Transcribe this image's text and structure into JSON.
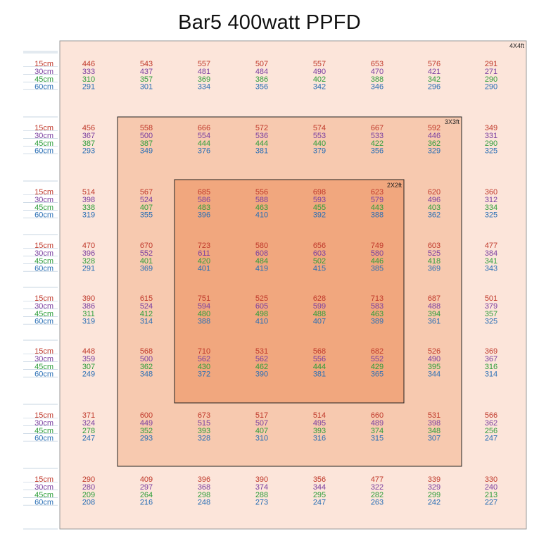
{
  "title": "Bar5 400watt PPFD",
  "colors": {
    "zone_outer": "#fce5da",
    "zone_mid": "#f7c9af",
    "zone_inner": "#f1a77e",
    "row_colors": [
      "#c0392b",
      "#7b3fa0",
      "#2e9e3a",
      "#2a6fb5"
    ]
  },
  "chart_data": {
    "type": "heatmap",
    "title": "Bar5 400watt PPFD",
    "heights": [
      "15cm",
      "30cm",
      "45cm",
      "60cm"
    ],
    "zones": [
      {
        "label": "4X4ft",
        "cols": [
          0,
          7
        ],
        "rows": [
          0,
          7
        ]
      },
      {
        "label": "3X3ft",
        "cols": [
          1,
          6
        ],
        "rows": [
          1,
          6
        ]
      },
      {
        "label": "2X2ft",
        "cols": [
          2,
          5
        ],
        "rows": [
          2,
          5
        ]
      }
    ],
    "grid": [
      [
        [
          446,
          333,
          310,
          291
        ],
        [
          543,
          437,
          357,
          301
        ],
        [
          557,
          481,
          369,
          334
        ],
        [
          507,
          484,
          386,
          356
        ],
        [
          557,
          490,
          402,
          342
        ],
        [
          653,
          470,
          388,
          346
        ],
        [
          576,
          421,
          342,
          296
        ],
        [
          291,
          271,
          290,
          290
        ]
      ],
      [
        [
          456,
          367,
          387,
          293
        ],
        [
          558,
          500,
          387,
          349
        ],
        [
          666,
          554,
          444,
          376
        ],
        [
          572,
          536,
          444,
          381
        ],
        [
          574,
          553,
          440,
          379
        ],
        [
          667,
          533,
          422,
          356
        ],
        [
          592,
          446,
          362,
          329
        ],
        [
          349,
          331,
          290,
          325
        ]
      ],
      [
        [
          514,
          398,
          338,
          319
        ],
        [
          567,
          524,
          407,
          355
        ],
        [
          685,
          586,
          483,
          396
        ],
        [
          556,
          588,
          463,
          410
        ],
        [
          698,
          593,
          455,
          392
        ],
        [
          623,
          579,
          443,
          388
        ],
        [
          620,
          496,
          403,
          362
        ],
        [
          360,
          312,
          334,
          325
        ]
      ],
      [
        [
          470,
          396,
          328,
          291
        ],
        [
          670,
          552,
          401,
          369
        ],
        [
          723,
          611,
          420,
          401
        ],
        [
          580,
          608,
          484,
          419
        ],
        [
          656,
          603,
          502,
          415
        ],
        [
          749,
          580,
          446,
          385
        ],
        [
          603,
          525,
          418,
          369
        ],
        [
          477,
          384,
          341,
          343
        ]
      ],
      [
        [
          390,
          386,
          311,
          319
        ],
        [
          615,
          524,
          412,
          314
        ],
        [
          751,
          594,
          480,
          388
        ],
        [
          525,
          605,
          498,
          410
        ],
        [
          628,
          599,
          488,
          407
        ],
        [
          713,
          583,
          463,
          389
        ],
        [
          687,
          488,
          394,
          361
        ],
        [
          501,
          379,
          357,
          325
        ]
      ],
      [
        [
          448,
          359,
          307,
          249
        ],
        [
          568,
          500,
          362,
          348
        ],
        [
          710,
          562,
          430,
          372
        ],
        [
          531,
          562,
          462,
          390
        ],
        [
          568,
          556,
          444,
          381
        ],
        [
          682,
          552,
          429,
          365
        ],
        [
          526,
          490,
          395,
          344
        ],
        [
          369,
          367,
          316,
          314
        ]
      ],
      [
        [
          371,
          324,
          278,
          247
        ],
        [
          600,
          449,
          352,
          293
        ],
        [
          673,
          515,
          393,
          328
        ],
        [
          517,
          507,
          407,
          310
        ],
        [
          514,
          495,
          393,
          316
        ],
        [
          660,
          489,
          374,
          315
        ],
        [
          531,
          398,
          348,
          307
        ],
        [
          566,
          362,
          256,
          247
        ]
      ],
      [
        [
          290,
          280,
          209,
          208
        ],
        [
          409,
          297,
          264,
          216
        ],
        [
          396,
          368,
          298,
          248
        ],
        [
          390,
          374,
          288,
          273
        ],
        [
          356,
          344,
          295,
          247
        ],
        [
          477,
          322,
          282,
          263
        ],
        [
          339,
          329,
          299,
          242
        ],
        [
          330,
          240,
          213,
          227
        ]
      ]
    ]
  }
}
